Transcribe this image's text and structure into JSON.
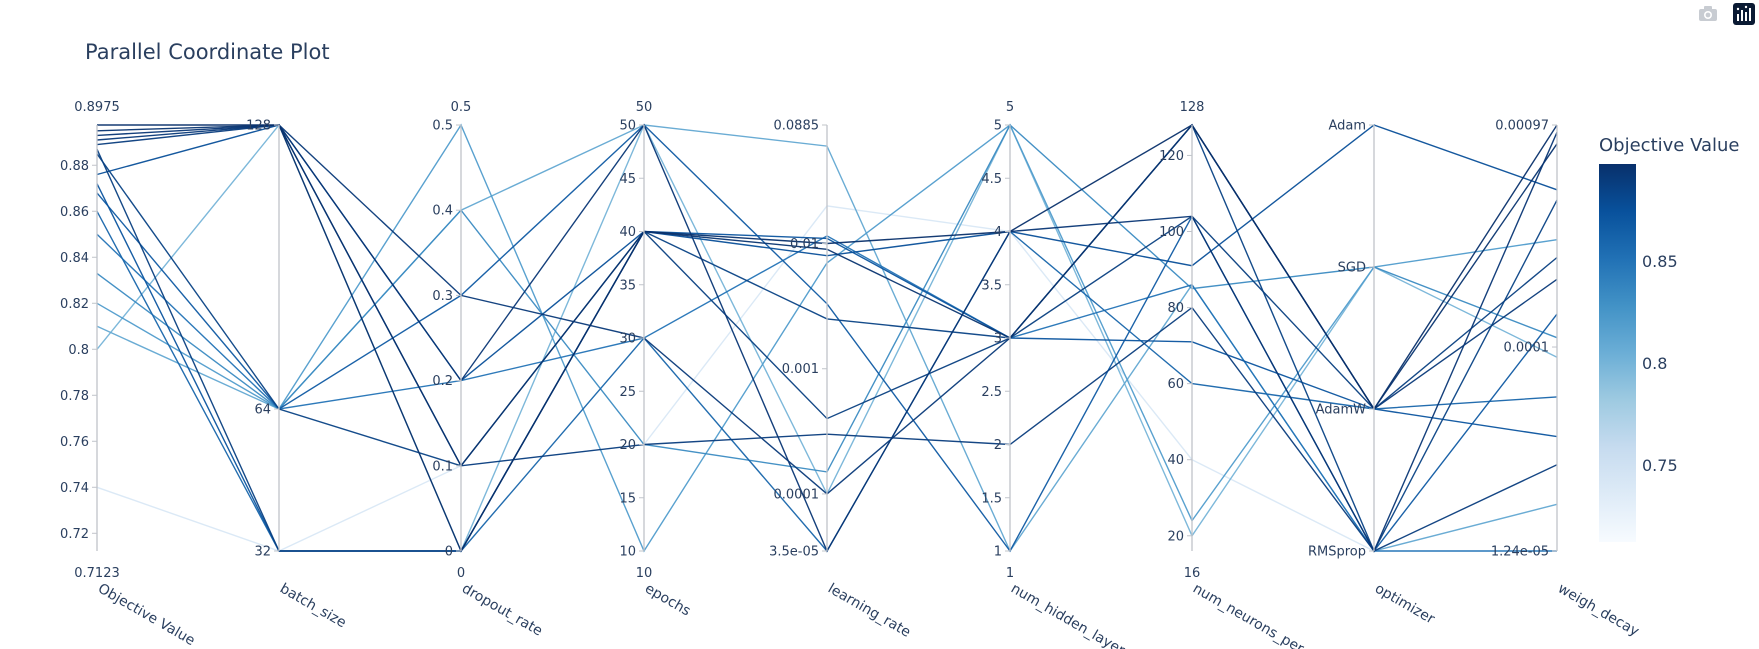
{
  "toolbar": {
    "camera_icon": "camera-icon",
    "brand_icon": "plotly-logo-icon"
  },
  "chart_data": {
    "type": "parallel_coordinates",
    "title": "Parallel Coordinate Plot",
    "colorscale": [
      "#f7fbff",
      "#deebf7",
      "#c6dbef",
      "#9ecae1",
      "#6baed6",
      "#4292c6",
      "#2171b5",
      "#08519c",
      "#08306b"
    ],
    "color_range": [
      0.7123,
      0.8975
    ],
    "colorbar": {
      "title": "Objective Value",
      "ticks": [
        "0.75",
        "0.8",
        "0.85"
      ],
      "tick_values": [
        0.75,
        0.8,
        0.85
      ]
    },
    "dimensions": [
      {
        "label": "Objective Value",
        "type": "linear",
        "range": [
          0.7123,
          0.8975
        ],
        "range_labels": [
          "0.7123",
          "0.8975"
        ],
        "tick_values": [
          0.72,
          0.74,
          0.76,
          0.78,
          0.8,
          0.82,
          0.84,
          0.86,
          0.88
        ],
        "tick_labels": [
          "0.72",
          "0.74",
          "0.76",
          "0.78",
          "0.8",
          "0.82",
          "0.84",
          "0.86",
          "0.88"
        ]
      },
      {
        "label": "batch_size",
        "type": "linear",
        "range": [
          32,
          128
        ],
        "range_labels": [
          "",
          ""
        ],
        "tick_values": [
          32,
          64,
          128
        ],
        "tick_labels": [
          "32",
          "64",
          "128"
        ]
      },
      {
        "label": "dropout_rate",
        "type": "linear",
        "range": [
          0,
          0.5
        ],
        "range_labels": [
          "0",
          "0.5"
        ],
        "tick_values": [
          0,
          0.1,
          0.2,
          0.3,
          0.4,
          0.5
        ],
        "tick_labels": [
          "0",
          "0.1",
          "0.2",
          "0.3",
          "0.4",
          "0.5"
        ]
      },
      {
        "label": "epochs",
        "type": "linear",
        "range": [
          10,
          50
        ],
        "range_labels": [
          "10",
          "50"
        ],
        "tick_values": [
          10,
          15,
          20,
          25,
          30,
          35,
          40,
          45,
          50
        ],
        "tick_labels": [
          "10",
          "15",
          "20",
          "25",
          "30",
          "35",
          "40",
          "45",
          "50"
        ]
      },
      {
        "label": "learning_rate",
        "type": "log",
        "range": [
          3.5e-05,
          0.0885
        ],
        "range_labels": [
          "",
          ""
        ],
        "tick_values": [
          3.5e-05,
          0.0001,
          0.001,
          0.01,
          0.0885
        ],
        "tick_labels": [
          "3.5e-05",
          "0.0001",
          "0.001",
          "0.01",
          "0.0885"
        ]
      },
      {
        "label": "num_hidden_layers",
        "type": "linear",
        "range": [
          1,
          5
        ],
        "range_labels": [
          "1",
          "5"
        ],
        "tick_values": [
          1,
          1.5,
          2,
          2.5,
          3,
          3.5,
          4,
          4.5,
          5
        ],
        "tick_labels": [
          "1",
          "1.5",
          "2",
          "2.5",
          "3",
          "3.5",
          "4",
          "4.5",
          "5"
        ]
      },
      {
        "label": "num_neurons_per",
        "type": "linear",
        "range": [
          16,
          128
        ],
        "range_labels": [
          "16",
          "128"
        ],
        "tick_values": [
          20,
          40,
          60,
          80,
          100,
          120
        ],
        "tick_labels": [
          "20",
          "40",
          "60",
          "80",
          "100",
          "120"
        ]
      },
      {
        "label": "optimizer",
        "type": "categorical",
        "range": [
          0,
          3
        ],
        "range_labels": [
          "",
          ""
        ],
        "tick_values": [
          0,
          1,
          2,
          3
        ],
        "tick_labels": [
          "RMSprop",
          "AdamW",
          "SGD",
          "Adam"
        ]
      },
      {
        "label": "weigh_decay",
        "type": "log",
        "range": [
          1.24e-05,
          0.00097
        ],
        "range_labels": [
          "",
          ""
        ],
        "tick_values": [
          1.24e-05,
          0.0001,
          0.00097
        ],
        "tick_labels": [
          "1.24e-05",
          "0.0001",
          "0.00097"
        ]
      }
    ],
    "trials": [
      {
        "values": [
          0.8975,
          128,
          0,
          40,
          0.01,
          4,
          128,
          1,
          0.00097
        ]
      },
      {
        "values": [
          0.895,
          128,
          0.1,
          40,
          0.009,
          3,
          128,
          1,
          0.0008
        ]
      },
      {
        "values": [
          0.893,
          128,
          0.2,
          50,
          3.5e-05,
          4,
          104,
          0,
          0.0009
        ]
      },
      {
        "values": [
          0.891,
          128,
          0.3,
          30,
          0.0001,
          3,
          128,
          1,
          0.0002
        ]
      },
      {
        "values": [
          0.889,
          128,
          0.1,
          20,
          0.0003,
          2,
          80,
          0,
          3e-05
        ]
      },
      {
        "values": [
          0.887,
          32,
          0,
          40,
          0.0004,
          3,
          104,
          1,
          0.00025
        ]
      },
      {
        "values": [
          0.885,
          64,
          0.1,
          40,
          0.0025,
          3,
          128,
          0,
          0.00045
        ]
      },
      {
        "values": [
          0.876,
          128,
          0.2,
          40,
          0.008,
          4,
          91,
          3,
          0.0005
        ]
      },
      {
        "values": [
          0.872,
          32,
          0,
          40,
          0.011,
          3,
          71,
          1,
          4e-05
        ]
      },
      {
        "values": [
          0.868,
          64,
          0.3,
          50,
          0.0033,
          1,
          104,
          0,
          0.00014
        ]
      },
      {
        "values": [
          0.86,
          32,
          0,
          30,
          3.5e-05,
          4,
          60,
          1,
          6e-05
        ]
      },
      {
        "values": [
          0.85,
          64,
          0.2,
          30,
          0.0115,
          3,
          86,
          0,
          1e-05
        ]
      },
      {
        "values": [
          0.833,
          64,
          0.4,
          20,
          0.00015,
          5,
          85,
          2,
          0.00011
        ]
      },
      {
        "values": [
          0.82,
          64,
          0.5,
          10,
          0.007,
          5,
          24,
          2,
          0.0003
        ]
      },
      {
        "values": [
          0.81,
          64,
          0.4,
          50,
          0.06,
          1,
          86,
          0,
          2e-05
        ]
      },
      {
        "values": [
          0.8,
          128,
          0,
          50,
          0.0001,
          5,
          20,
          2,
          9e-05
        ]
      },
      {
        "values": [
          0.74,
          32,
          0.1,
          20,
          0.02,
          4,
          40,
          0,
          1e-05
        ]
      }
    ]
  }
}
